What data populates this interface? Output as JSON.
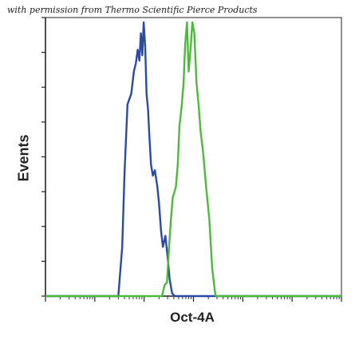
{
  "credit": "with permission from Thermo Scientific Pierce Products",
  "chart_data": {
    "type": "line",
    "xlabel": "Oct-4A",
    "ylabel": "Events",
    "x_scale": "log",
    "xlim": [
      0.01,
      10000
    ],
    "ylim": [
      0,
      100
    ],
    "grid": false,
    "series": [
      {
        "color": "#2a4aa8",
        "x": [
          0.3,
          0.36,
          0.4,
          0.46,
          0.55,
          0.62,
          0.68,
          0.74,
          0.8,
          0.86,
          0.92,
          0.98,
          1.05,
          1.12,
          1.2,
          1.28,
          1.38,
          1.5,
          1.65,
          1.85,
          2.0,
          2.2,
          2.4,
          2.7,
          3.0,
          3.3,
          3.7,
          4.2
        ],
        "y": [
          0,
          18,
          45,
          70,
          74,
          82,
          85,
          90,
          86,
          96,
          88,
          100,
          91,
          74,
          68,
          58,
          48,
          44,
          46,
          40,
          34,
          24,
          18,
          22,
          14,
          6,
          1,
          0
        ]
      },
      {
        "color": "#4dba3c",
        "x": [
          2.3,
          2.6,
          2.9,
          3.2,
          3.5,
          3.8,
          4.1,
          4.4,
          4.8,
          5.2,
          5.8,
          6.3,
          6.8,
          7.4,
          8.0,
          8.7,
          9.5,
          10.4,
          11.5,
          12.7,
          14.0,
          15.8,
          18.0,
          21.0,
          24.0,
          28.0
        ],
        "y": [
          0,
          4,
          5,
          18,
          28,
          36,
          38,
          40,
          48,
          62,
          70,
          78,
          92,
          100,
          82,
          90,
          100,
          96,
          78,
          70,
          60,
          52,
          40,
          28,
          10,
          0
        ]
      }
    ]
  }
}
